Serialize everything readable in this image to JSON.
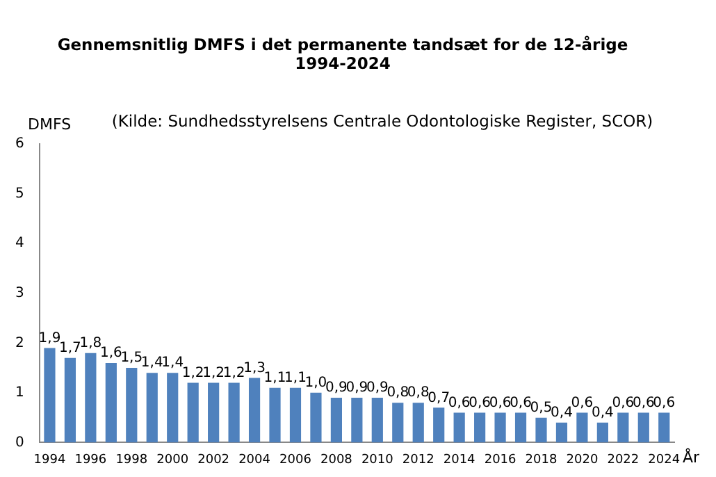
{
  "chart_data": {
    "type": "bar",
    "title": "Gennemsnitlig DMFS i det permanente tandsæt for de 12-årige\n1994-2024",
    "annotations": [
      "(Kilde: Sundhedsstyrelsens Centrale Odontologiske Register, SCOR)"
    ],
    "ylabel": "DMFS",
    "xlabel": "År",
    "categories": [
      "1994",
      null,
      "1996",
      null,
      "1998",
      null,
      "2000",
      null,
      "2002",
      null,
      "2004",
      null,
      "2006",
      null,
      "2008",
      null,
      "2010",
      null,
      "2012",
      null,
      "2014",
      null,
      "2016",
      null,
      "2018",
      null,
      "2020",
      null,
      "2022",
      null,
      "2024"
    ],
    "values": [
      1.9,
      1.7,
      1.8,
      1.6,
      1.5,
      1.4,
      1.4,
      1.2,
      1.2,
      1.2,
      1.3,
      1.1,
      1.1,
      1.0,
      0.9,
      0.9,
      0.9,
      0.8,
      0.8,
      0.7,
      0.6,
      0.6,
      0.6,
      0.6,
      0.5,
      0.4,
      0.6,
      0.4,
      0.6,
      0.6,
      0.6
    ],
    "value_labels": [
      "1,9",
      "1,7",
      "1,8",
      "1,6",
      "1,5",
      "1,4",
      "1,4",
      "1,2",
      "1,2",
      "1,2",
      "1,3",
      "1,1",
      "1,1",
      "1,0",
      "0,9",
      "0,9",
      "0,9",
      "0,8",
      "0,8",
      "0,7",
      "0,6",
      "0,6",
      "0,6",
      "0,6",
      "0,5",
      "0,4",
      "0,6",
      "0,4",
      "0,6",
      "0,6",
      "0,6"
    ],
    "color": "#4f81bd",
    "ylim": [
      0,
      6
    ],
    "yticks": [
      0,
      1,
      2,
      3,
      4,
      5,
      6
    ],
    "grid": false,
    "legend": false
  }
}
